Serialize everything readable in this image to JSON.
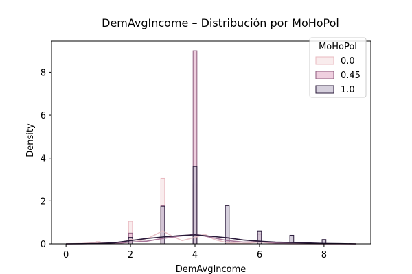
{
  "chart_data": {
    "type": "bar",
    "title": "DemAvgIncome – Distribución por MoHoPol",
    "xlabel": "DemAvgIncome",
    "ylabel": "Density",
    "xlim": [
      -0.45,
      9.45
    ],
    "ylim": [
      0,
      9.45
    ],
    "xticks": [
      0,
      2,
      4,
      6,
      8
    ],
    "yticks": [
      0,
      2,
      4,
      6,
      8
    ],
    "bar_width": 0.12,
    "legend": {
      "title": "MoHoPol",
      "placement": "top-right",
      "entries": [
        "0.0",
        "0.45",
        "1.0"
      ]
    },
    "series": [
      {
        "name": "0.0",
        "fill": "#f7e6e7",
        "edge": "#e9b8bf",
        "line": "#e9c3c9",
        "bars": [
          {
            "x": 1.0,
            "y": 0.1
          },
          {
            "x": 2.0,
            "y": 1.05
          },
          {
            "x": 3.0,
            "y": 3.05
          },
          {
            "x": 4.0,
            "y": 2.8
          },
          {
            "x": 6.0,
            "y": 0.5
          }
        ],
        "kde": [
          [
            0.0,
            0.0
          ],
          [
            0.5,
            0.02
          ],
          [
            1.0,
            0.06
          ],
          [
            1.5,
            0.05
          ],
          [
            1.8,
            0.1
          ],
          [
            2.0,
            0.2
          ],
          [
            2.3,
            0.15
          ],
          [
            2.6,
            0.3
          ],
          [
            3.0,
            0.6
          ],
          [
            3.3,
            0.35
          ],
          [
            3.6,
            0.15
          ],
          [
            4.0,
            0.3
          ],
          [
            4.3,
            0.45
          ],
          [
            4.6,
            0.2
          ],
          [
            5.0,
            0.05
          ],
          [
            5.5,
            0.02
          ],
          [
            6.0,
            0.08
          ],
          [
            6.5,
            0.02
          ],
          [
            7.0,
            0.0
          ],
          [
            9.0,
            0.0
          ]
        ]
      },
      {
        "name": "0.45",
        "fill": "#e9bfd4",
        "edge": "#8c5a7c",
        "line": "#a8779a",
        "bars": [
          {
            "x": 2.0,
            "y": 0.5
          },
          {
            "x": 3.0,
            "y": 1.8
          },
          {
            "x": 4.0,
            "y": 9.0
          },
          {
            "x": 5.0,
            "y": 0.3
          },
          {
            "x": 6.0,
            "y": 0.45
          }
        ],
        "kde": [
          [
            0.0,
            0.0
          ],
          [
            1.5,
            0.01
          ],
          [
            2.0,
            0.08
          ],
          [
            2.5,
            0.12
          ],
          [
            3.0,
            0.25
          ],
          [
            3.5,
            0.35
          ],
          [
            4.0,
            0.45
          ],
          [
            4.5,
            0.3
          ],
          [
            5.0,
            0.15
          ],
          [
            5.5,
            0.08
          ],
          [
            6.0,
            0.1
          ],
          [
            6.5,
            0.04
          ],
          [
            7.0,
            0.02
          ],
          [
            8.0,
            0.0
          ],
          [
            9.0,
            0.0
          ]
        ]
      },
      {
        "name": "1.0",
        "fill": "#c8c0d2",
        "edge": "#2a1a3a",
        "line": "#2a1a3a",
        "bars": [
          {
            "x": 2.0,
            "y": 0.3
          },
          {
            "x": 3.0,
            "y": 1.75
          },
          {
            "x": 4.0,
            "y": 3.6
          },
          {
            "x": 5.0,
            "y": 1.8
          },
          {
            "x": 6.0,
            "y": 0.6
          },
          {
            "x": 7.0,
            "y": 0.4
          },
          {
            "x": 8.0,
            "y": 0.2
          }
        ],
        "kde": [
          [
            0.0,
            0.0
          ],
          [
            0.5,
            0.005
          ],
          [
            1.0,
            0.02
          ],
          [
            1.5,
            0.05
          ],
          [
            2.0,
            0.15
          ],
          [
            2.5,
            0.25
          ],
          [
            3.0,
            0.32
          ],
          [
            3.5,
            0.38
          ],
          [
            4.0,
            0.42
          ],
          [
            4.5,
            0.35
          ],
          [
            5.0,
            0.28
          ],
          [
            5.5,
            0.18
          ],
          [
            6.0,
            0.12
          ],
          [
            6.5,
            0.08
          ],
          [
            7.0,
            0.06
          ],
          [
            7.5,
            0.04
          ],
          [
            8.0,
            0.02
          ],
          [
            8.5,
            0.01
          ],
          [
            9.0,
            0.0
          ]
        ]
      }
    ]
  }
}
